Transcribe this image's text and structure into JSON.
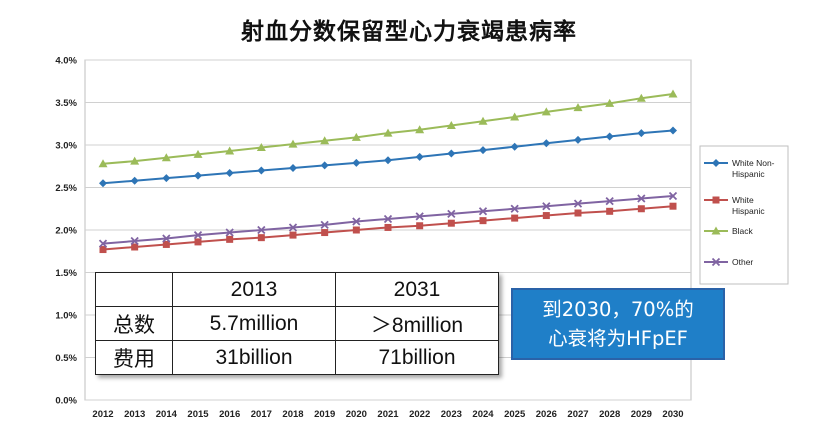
{
  "title": "射血分数保留型心力衰竭患病率",
  "chart_data": {
    "type": "line",
    "x": [
      2012,
      2013,
      2014,
      2015,
      2016,
      2017,
      2018,
      2019,
      2020,
      2021,
      2022,
      2023,
      2024,
      2025,
      2026,
      2027,
      2028,
      2029,
      2030
    ],
    "x_tick_labels": [
      "2012",
      "2013",
      "2014",
      "2015",
      "2016",
      "2017",
      "2018",
      "2019",
      "2020",
      "2021",
      "2022",
      "2023",
      "2024",
      "2025",
      "2026",
      "2027",
      "2028",
      "2029",
      "2030"
    ],
    "y_tick_labels": [
      "0.0%",
      "0.5%",
      "1.0%",
      "1.5%",
      "2.0%",
      "2.5%",
      "3.0%",
      "3.5%",
      "4.0%"
    ],
    "ylim": [
      0,
      4.0
    ],
    "y_unit": "%",
    "grid": "horizontal",
    "legend_position": "right",
    "series": [
      {
        "name": "White Non-Hispanic",
        "legend_lines": [
          "White Non-",
          "Hispanic"
        ],
        "color": "#2e75b6",
        "marker": "diamond",
        "values": [
          2.55,
          2.58,
          2.61,
          2.64,
          2.67,
          2.7,
          2.73,
          2.76,
          2.79,
          2.82,
          2.86,
          2.9,
          2.94,
          2.98,
          3.02,
          3.06,
          3.1,
          3.14,
          3.17
        ]
      },
      {
        "name": "White Hispanic",
        "legend_lines": [
          "White",
          "Hispanic"
        ],
        "color": "#c0504d",
        "marker": "square",
        "values": [
          1.77,
          1.8,
          1.83,
          1.86,
          1.89,
          1.91,
          1.94,
          1.97,
          2.0,
          2.03,
          2.05,
          2.08,
          2.11,
          2.14,
          2.17,
          2.2,
          2.22,
          2.25,
          2.28
        ]
      },
      {
        "name": "Black",
        "legend_lines": [
          "Black"
        ],
        "color": "#9bbb59",
        "marker": "triangle",
        "values": [
          2.78,
          2.81,
          2.85,
          2.89,
          2.93,
          2.97,
          3.01,
          3.05,
          3.09,
          3.14,
          3.18,
          3.23,
          3.28,
          3.33,
          3.39,
          3.44,
          3.49,
          3.55,
          3.6
        ]
      },
      {
        "name": "Other",
        "legend_lines": [
          "Other"
        ],
        "color": "#8064a2",
        "marker": "x",
        "values": [
          1.84,
          1.87,
          1.9,
          1.94,
          1.97,
          2.0,
          2.03,
          2.06,
          2.1,
          2.13,
          2.16,
          2.19,
          2.22,
          2.25,
          2.28,
          2.31,
          2.34,
          2.37,
          2.4
        ]
      }
    ]
  },
  "table": {
    "header": [
      "",
      "2013",
      "2031"
    ],
    "rows": [
      {
        "label": "总数",
        "v2013": "5.7million",
        "v2031": "＞8million"
      },
      {
        "label": "费用",
        "v2013": "31billion",
        "v2031": "71billion"
      }
    ]
  },
  "callout": {
    "line1": "到2030，70%的",
    "line2": "心衰将为HFpEF",
    "bg_color": "#1f7fc8"
  }
}
